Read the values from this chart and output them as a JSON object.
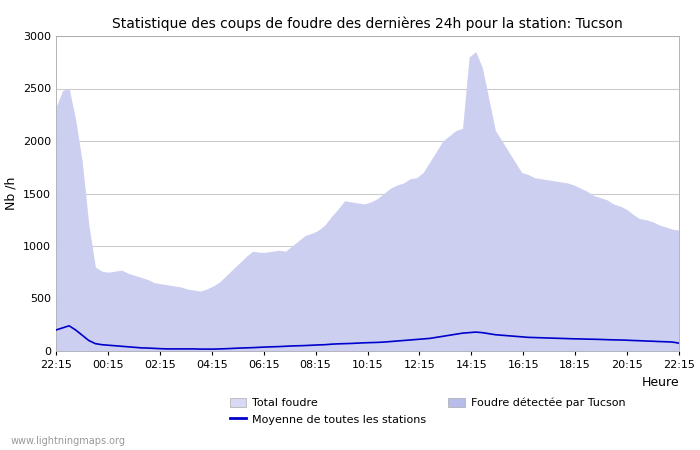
{
  "title": "Statistique des coups de foudre des dernières 24h pour la station: Tucson",
  "xlabel": "Heure",
  "ylabel": "Nb /h",
  "ylim": [
    0,
    3000
  ],
  "yticks": [
    0,
    500,
    1000,
    1500,
    2000,
    2500,
    3000
  ],
  "x_labels": [
    "22:15",
    "00:15",
    "02:15",
    "04:15",
    "06:15",
    "08:15",
    "10:15",
    "12:15",
    "14:15",
    "16:15",
    "18:15",
    "20:15",
    "22:15"
  ],
  "watermark": "www.lightningmaps.org",
  "bg_color": "#ffffff",
  "plot_bg_color": "#ffffff",
  "grid_color": "#cccccc",
  "total_foudre_color": "#d8daf5",
  "tucson_color": "#b8bce8",
  "moyenne_color": "#0000cc",
  "total_foudre_data": [
    2320,
    2480,
    2500,
    2200,
    1800,
    1200,
    800,
    760,
    750,
    760,
    770,
    740,
    720,
    700,
    680,
    650,
    640,
    630,
    620,
    610,
    590,
    580,
    570,
    590,
    620,
    660,
    720,
    780,
    840,
    900,
    950,
    940,
    940,
    950,
    960,
    950,
    1000,
    1050,
    1100,
    1120,
    1150,
    1200,
    1280,
    1350,
    1430,
    1420,
    1410,
    1400,
    1420,
    1450,
    1500,
    1550,
    1580,
    1600,
    1640,
    1650,
    1700,
    1800,
    1900,
    2000,
    2050,
    2100,
    2120,
    2800,
    2850,
    2700,
    2400,
    2100,
    2000,
    1900,
    1800,
    1700,
    1680,
    1650,
    1640,
    1630,
    1620,
    1610,
    1600,
    1580,
    1550,
    1520,
    1480,
    1460,
    1440,
    1400,
    1380,
    1350,
    1300,
    1260,
    1250,
    1230,
    1200,
    1180,
    1160,
    1150
  ],
  "tucson_data": [
    2320,
    2480,
    2500,
    2200,
    1800,
    1200,
    800,
    760,
    750,
    760,
    770,
    740,
    720,
    700,
    680,
    650,
    640,
    630,
    620,
    610,
    590,
    580,
    570,
    590,
    620,
    660,
    720,
    780,
    840,
    900,
    950,
    940,
    940,
    950,
    960,
    950,
    1000,
    1050,
    1100,
    1120,
    1150,
    1200,
    1280,
    1350,
    1430,
    1420,
    1410,
    1400,
    1420,
    1450,
    1500,
    1550,
    1580,
    1600,
    1640,
    1650,
    1700,
    1800,
    1900,
    2000,
    2050,
    2100,
    2120,
    2800,
    2850,
    2700,
    2400,
    2100,
    2000,
    1900,
    1800,
    1700,
    1680,
    1650,
    1640,
    1630,
    1620,
    1610,
    1600,
    1580,
    1550,
    1520,
    1480,
    1460,
    1440,
    1400,
    1380,
    1350,
    1300,
    1260,
    1250,
    1230,
    1200,
    1180,
    1160,
    1150
  ],
  "moyenne_data": [
    200,
    220,
    240,
    200,
    150,
    100,
    70,
    60,
    55,
    50,
    45,
    40,
    35,
    30,
    28,
    25,
    22,
    20,
    20,
    20,
    20,
    20,
    18,
    18,
    18,
    20,
    22,
    25,
    28,
    30,
    32,
    35,
    38,
    40,
    42,
    45,
    48,
    50,
    52,
    55,
    58,
    60,
    65,
    68,
    70,
    72,
    75,
    78,
    80,
    82,
    85,
    90,
    95,
    100,
    105,
    110,
    115,
    120,
    130,
    140,
    150,
    160,
    170,
    175,
    180,
    175,
    165,
    155,
    150,
    145,
    140,
    135,
    130,
    128,
    126,
    124,
    122,
    120,
    118,
    116,
    115,
    113,
    112,
    110,
    108,
    106,
    105,
    103,
    100,
    98,
    95,
    93,
    90,
    88,
    85,
    75
  ],
  "n_points": 96
}
